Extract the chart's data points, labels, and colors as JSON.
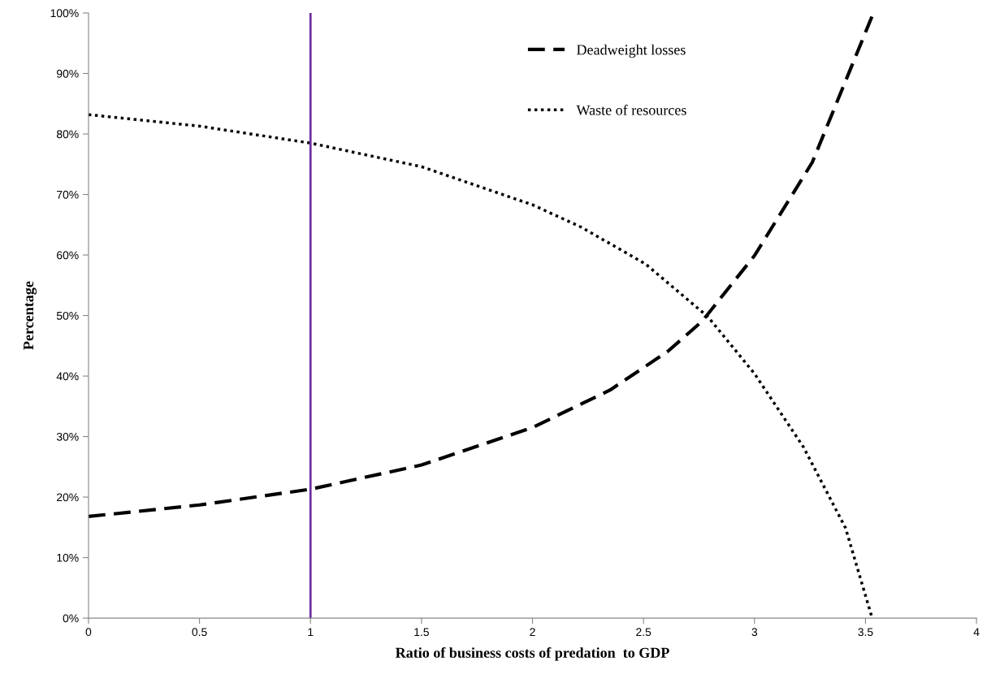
{
  "chart_data": {
    "type": "line",
    "xlabel": "Ratio of business costs of predation  to GDP",
    "ylabel": "Percentage",
    "series": [
      {
        "name": "Deadweight losses",
        "color": "#000000",
        "line_style": "dashed",
        "x": [
          0,
          0.5,
          1,
          1.5,
          2,
          2.35,
          2.61,
          2.765,
          3.0,
          3.26,
          3.53
        ],
        "values": [
          16.8,
          18.7,
          21.3,
          25.3,
          31.5,
          37.7,
          44.1,
          49.1,
          59.9,
          75.3,
          99.5
        ]
      },
      {
        "name": "Waste of resources",
        "color": "#000000",
        "line_style": "dotted",
        "x": [
          0,
          0.5,
          1,
          1.5,
          2,
          2.22,
          2.51,
          2.79,
          3.0,
          3.22,
          3.41,
          3.53
        ],
        "values": [
          83.2,
          81.3,
          78.5,
          74.6,
          68.3,
          64.6,
          58.5,
          49.8,
          40.4,
          28.3,
          14.9,
          0
        ]
      }
    ],
    "ref_lines": [
      {
        "axis": "x",
        "value": 1,
        "color": "#7030a0"
      }
    ],
    "xlim": [
      0,
      4
    ],
    "xticks": [
      0,
      0.5,
      1,
      1.5,
      2,
      2.5,
      3,
      3.5,
      4
    ],
    "ylim": [
      0,
      100
    ],
    "yticks": [
      {
        "value": 0,
        "label": "0%"
      },
      {
        "value": 10,
        "label": "10%"
      },
      {
        "value": 20,
        "label": "20%"
      },
      {
        "value": 30,
        "label": "30%"
      },
      {
        "value": 40,
        "label": "40%"
      },
      {
        "value": 50,
        "label": "50%"
      },
      {
        "value": 60,
        "label": "60%"
      },
      {
        "value": 70,
        "label": "70%"
      },
      {
        "value": 80,
        "label": "80%"
      },
      {
        "value": 90,
        "label": "90%"
      },
      {
        "value": 100,
        "label": "100%"
      }
    ],
    "grid": false,
    "legend": "top right"
  }
}
